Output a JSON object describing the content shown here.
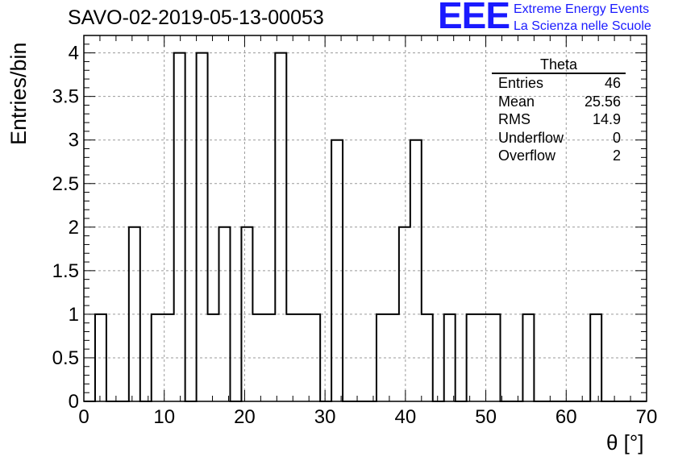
{
  "header": {
    "run_title": "SAVO-02-2019-05-13-00053",
    "logo_mark": "EEE",
    "logo_line1": "Extreme Energy Events",
    "logo_line2": "La Scienza nelle Scuole"
  },
  "stats": {
    "title": "Theta",
    "rows": [
      {
        "label": "Entries",
        "value": "46"
      },
      {
        "label": "Mean",
        "value": "25.56"
      },
      {
        "label": "RMS",
        "value": "14.9"
      },
      {
        "label": "Underflow",
        "value": "0"
      },
      {
        "label": "Overflow",
        "value": "2"
      }
    ]
  },
  "colors": {
    "line": "#000000",
    "grid": "#9a9a9a",
    "logo": "#1a1aff"
  },
  "chart_data": {
    "type": "bar",
    "style": "step-histogram",
    "xlabel": "θ [°]",
    "ylabel": "Entries/bin",
    "xlim": [
      0,
      70
    ],
    "ylim": [
      0,
      4.2
    ],
    "grid": true,
    "bin_width": 1.4,
    "bin_edges_start": 0,
    "values": [
      0,
      1,
      0,
      0,
      2,
      0,
      1,
      1,
      4,
      0,
      4,
      1,
      2,
      0,
      2,
      1,
      1,
      4,
      1,
      1,
      1,
      0,
      3,
      0,
      0,
      0,
      1,
      1,
      2,
      3,
      1,
      0,
      1,
      0,
      1,
      1,
      1,
      0,
      0,
      1,
      0,
      0,
      0,
      0,
      0,
      1,
      0,
      0,
      0,
      0
    ],
    "xticks": [
      0,
      10,
      20,
      30,
      40,
      50,
      60,
      70
    ],
    "xtick_labels": [
      "0",
      "10",
      "20",
      "30",
      "40",
      "50",
      "60",
      "70"
    ],
    "yticks": [
      0,
      0.5,
      1,
      1.5,
      2,
      2.5,
      3,
      3.5,
      4
    ],
    "ytick_labels": [
      "0",
      "0.5",
      "1",
      "1.5",
      "2",
      "2.5",
      "3",
      "3.5",
      "4"
    ]
  }
}
